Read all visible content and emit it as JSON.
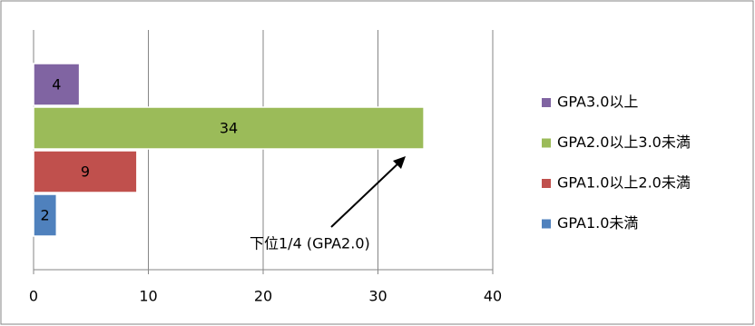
{
  "chart_data": {
    "type": "bar",
    "orientation": "horizontal",
    "series": [
      {
        "name": "GPA1.0未満",
        "color": "#4f81bd",
        "values": [
          2
        ]
      },
      {
        "name": "GPA1.0以上2.0未満",
        "color": "#c0504d",
        "values": [
          9
        ]
      },
      {
        "name": "GPA2.0以上3.0未満",
        "color": "#9bbb59",
        "values": [
          34
        ]
      },
      {
        "name": "GPA3.0以上",
        "color": "#8064a2",
        "values": [
          4
        ]
      }
    ],
    "xlim": [
      0,
      40
    ],
    "xticks": [
      0,
      10,
      20,
      30,
      40
    ],
    "grid": true,
    "annotation": "下位1/4  (GPA2.0)"
  }
}
